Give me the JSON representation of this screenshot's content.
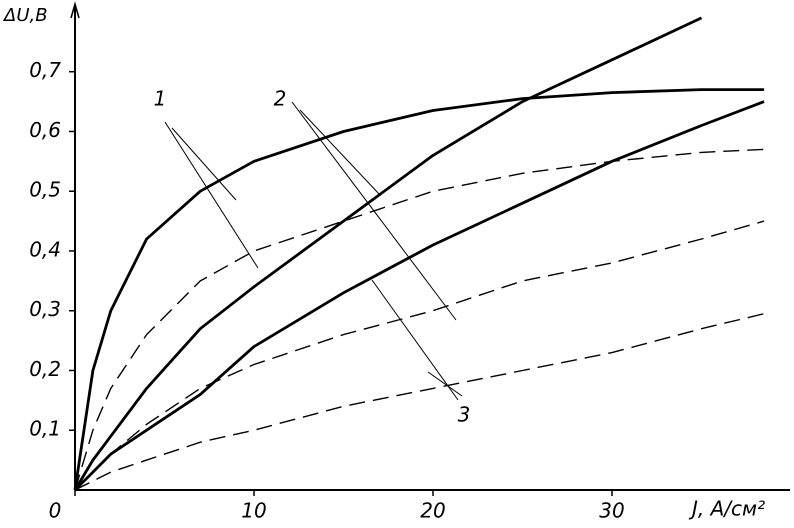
{
  "chart_data": {
    "type": "line",
    "y_label": "ΔU,B",
    "x_label": "J, A/см²",
    "x": [
      0,
      1,
      2,
      4,
      7,
      10,
      15,
      20,
      25,
      30,
      35,
      38.5
    ],
    "series": [
      {
        "name": "1",
        "color": "#000000",
        "linestyle": "solid",
        "values": [
          0,
          0.2,
          0.3,
          0.42,
          0.5,
          0.55,
          0.6,
          0.635,
          0.655,
          0.665,
          0.67,
          0.67
        ]
      },
      {
        "name": "1",
        "color": "#000000",
        "linestyle": "dashed",
        "values": [
          0,
          0.1,
          0.17,
          0.26,
          0.35,
          0.4,
          0.45,
          0.5,
          0.53,
          0.55,
          0.565,
          0.57
        ]
      },
      {
        "name": "2",
        "color": "#000000",
        "linestyle": "solid",
        "values": [
          0,
          0.05,
          0.09,
          0.17,
          0.27,
          0.34,
          0.45,
          0.56,
          0.65,
          0.72,
          0.79,
          null
        ]
      },
      {
        "name": "2",
        "color": "#000000",
        "linestyle": "dashed",
        "values": [
          0,
          0.03,
          0.06,
          0.11,
          0.17,
          0.21,
          0.26,
          0.3,
          0.35,
          0.38,
          0.42,
          0.45
        ]
      },
      {
        "name": "3",
        "color": "#000000",
        "linestyle": "solid",
        "values": [
          0,
          0.03,
          0.06,
          0.1,
          0.16,
          0.24,
          0.33,
          0.41,
          0.48,
          0.55,
          0.61,
          0.65
        ]
      },
      {
        "name": "3",
        "color": "#000000",
        "linestyle": "dashed",
        "values": [
          0,
          0.015,
          0.03,
          0.05,
          0.08,
          0.1,
          0.14,
          0.17,
          0.2,
          0.23,
          0.27,
          0.295
        ]
      }
    ],
    "xlim": [
      0,
      40
    ],
    "ylim": [
      0,
      0.82
    ],
    "xticks": [
      0,
      10,
      20,
      30
    ],
    "yticks": [
      {
        "value": 0.1,
        "label": "0,1"
      },
      {
        "value": 0.2,
        "label": "0,2"
      },
      {
        "value": 0.3,
        "label": "0,3"
      },
      {
        "value": 0.4,
        "label": "0,4"
      },
      {
        "value": 0.5,
        "label": "0,5"
      },
      {
        "value": 0.6,
        "label": "0,6"
      },
      {
        "value": 0.7,
        "label": "0,7"
      }
    ],
    "grid": false
  }
}
